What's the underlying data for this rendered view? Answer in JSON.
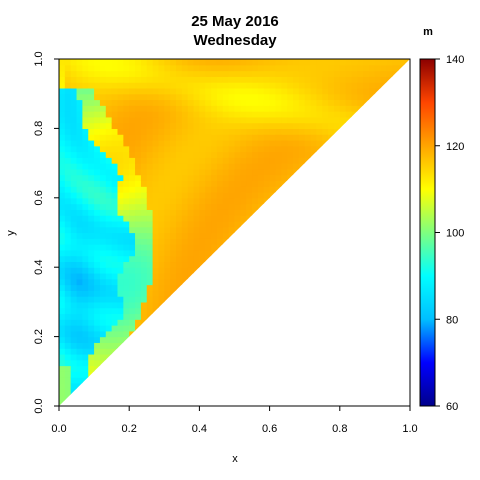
{
  "chart_data": {
    "type": "heatmap",
    "title": "25 May 2016",
    "subtitle": "Wednesday",
    "xlabel": "x",
    "ylabel": "y",
    "xlim": [
      0,
      1
    ],
    "ylim": [
      0,
      1
    ],
    "x_ticks": [
      "0.0",
      "0.2",
      "0.4",
      "0.6",
      "0.8",
      "1.0"
    ],
    "y_ticks": [
      "0.0",
      "0.2",
      "0.4",
      "0.6",
      "0.8",
      "1.0"
    ],
    "domain": "upper-left triangle (y >= x)",
    "colorbar": {
      "unit": "m",
      "range": [
        60,
        140
      ],
      "ticks": [
        "60",
        "80",
        "100",
        "120",
        "140"
      ],
      "colors": [
        "#00008b",
        "#0000ff",
        "#00bfff",
        "#00ffff",
        "#7fff7f",
        "#ffff00",
        "#ffa500",
        "#ff4500",
        "#8b0000"
      ]
    },
    "field_estimate": {
      "description_values_m": "approximate values read from colour",
      "upper_band_x0_to_ridge": 112,
      "orange_region": 118,
      "cyan_lobe": 90,
      "blue_core": 82,
      "corner_near_origin": 100
    }
  }
}
